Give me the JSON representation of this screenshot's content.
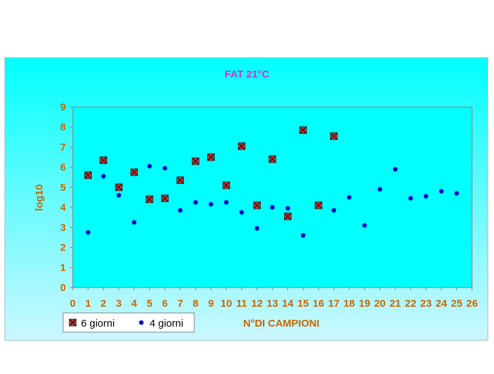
{
  "chart_data": {
    "type": "scatter",
    "title": "FAT 21°C",
    "xlabel": "N°DI CAMPIONI",
    "ylabel": "log10",
    "xlim": [
      0,
      26
    ],
    "ylim": [
      0,
      9
    ],
    "x_ticks": [
      0,
      1,
      2,
      3,
      4,
      5,
      6,
      7,
      8,
      9,
      10,
      11,
      12,
      13,
      14,
      15,
      16,
      17,
      18,
      19,
      20,
      21,
      22,
      23,
      24,
      25,
      26
    ],
    "y_ticks": [
      0,
      1,
      2,
      3,
      4,
      5,
      6,
      7,
      8,
      9
    ],
    "grid": false,
    "legend_position": "bottom-left",
    "colors": {
      "background_top": "#00FFFF",
      "background_bottom": "#CCF7FF",
      "plot_area": "#00FFFF",
      "title": "#CC33CC",
      "axis_text": "#CC6600",
      "marker_6_giorni_fill": "#CC3333",
      "marker_6_giorni_x": "#1A1A1A",
      "marker_4_giorni": "#0000CC"
    },
    "series": [
      {
        "name": "6 giorni",
        "marker": "x-square",
        "points": [
          {
            "x": 1,
            "y": 5.6
          },
          {
            "x": 2,
            "y": 6.35
          },
          {
            "x": 3,
            "y": 5.0
          },
          {
            "x": 4,
            "y": 5.75
          },
          {
            "x": 5,
            "y": 4.4
          },
          {
            "x": 6,
            "y": 4.45
          },
          {
            "x": 7,
            "y": 5.35
          },
          {
            "x": 8,
            "y": 6.3
          },
          {
            "x": 9,
            "y": 6.5
          },
          {
            "x": 10,
            "y": 5.1
          },
          {
            "x": 11,
            "y": 7.05
          },
          {
            "x": 12,
            "y": 4.1
          },
          {
            "x": 13,
            "y": 6.4
          },
          {
            "x": 14,
            "y": 3.55
          },
          {
            "x": 15,
            "y": 7.85
          },
          {
            "x": 16,
            "y": 4.1
          },
          {
            "x": 17,
            "y": 7.55
          }
        ]
      },
      {
        "name": "4 giorni",
        "marker": "circle",
        "points": [
          {
            "x": 1,
            "y": 2.75
          },
          {
            "x": 2,
            "y": 5.55
          },
          {
            "x": 3,
            "y": 4.6
          },
          {
            "x": 4,
            "y": 3.25
          },
          {
            "x": 5,
            "y": 6.05
          },
          {
            "x": 6,
            "y": 5.95
          },
          {
            "x": 7,
            "y": 3.85
          },
          {
            "x": 8,
            "y": 4.25
          },
          {
            "x": 9,
            "y": 4.15
          },
          {
            "x": 10,
            "y": 4.25
          },
          {
            "x": 11,
            "y": 3.75
          },
          {
            "x": 12,
            "y": 2.95
          },
          {
            "x": 13,
            "y": 4.0
          },
          {
            "x": 14,
            "y": 3.95
          },
          {
            "x": 15,
            "y": 2.6
          },
          {
            "x": 16,
            "y": 4.05
          },
          {
            "x": 17,
            "y": 3.85
          },
          {
            "x": 18,
            "y": 4.5
          },
          {
            "x": 19,
            "y": 3.1
          },
          {
            "x": 20,
            "y": 4.9
          },
          {
            "x": 21,
            "y": 5.9
          },
          {
            "x": 22,
            "y": 4.45
          },
          {
            "x": 23,
            "y": 4.55
          },
          {
            "x": 24,
            "y": 4.8
          },
          {
            "x": 25,
            "y": 4.7
          }
        ]
      }
    ]
  }
}
